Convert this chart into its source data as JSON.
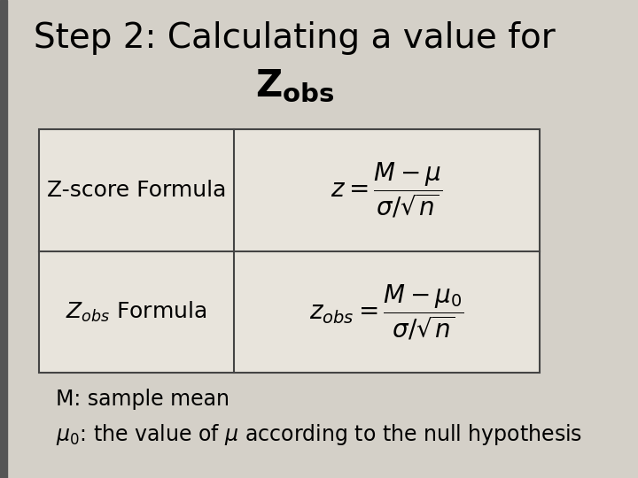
{
  "title_line1": "Step 2: Calculating a value for",
  "title_line2": "Z",
  "title_line2_sub": "obs",
  "bg_color": "#d4d0c8",
  "table_bg": "#dedad2",
  "cell_bg": "#e8e4dc",
  "border_color": "#444444",
  "title_fontsize": 28,
  "label_fontsize": 18,
  "formula_fontsize": 20,
  "note_fontsize": 17,
  "row1_label": "Z-score Formula",
  "row2_label": "$Z_{obs}$ Formula",
  "row1_formula": "$z = \\dfrac{M - \\mu}{\\sigma / \\sqrt{n}}$",
  "row2_formula": "$z_{obs} = \\dfrac{M - \\mu_0}{\\sigma / \\sqrt{n}}$",
  "note_line1": "M: sample mean",
  "note_line2": "$\\mu_0$: the value of $\\mu$ according to the null hypothesis",
  "left_bar_color": "#555555",
  "left_bar_width": 0.012
}
